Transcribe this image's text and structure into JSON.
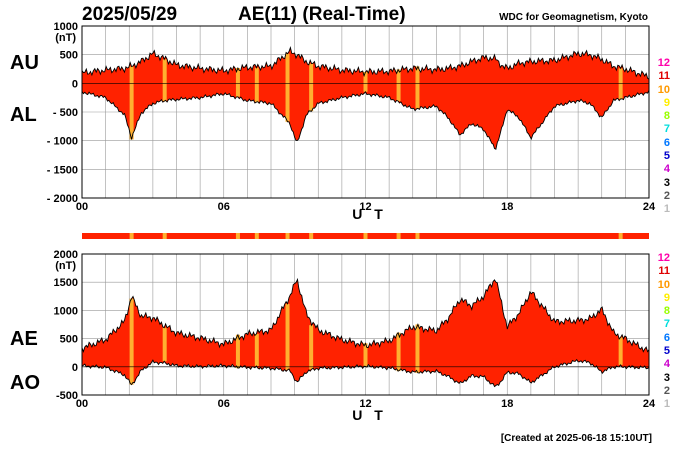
{
  "header": {
    "date": "2025/05/29",
    "title": "AE(11) (Real-Time)",
    "credit": "WDC for Geomagnetism, Kyoto"
  },
  "footer": {
    "created": "[Created at 2025-06-18 15:10UT]"
  },
  "station_counts": [
    "12",
    "11",
    "10",
    "9",
    "8",
    "7",
    "6",
    "5",
    "4",
    "3",
    "2",
    "1"
  ],
  "station_colors": [
    "#ff00aa",
    "#e00000",
    "#ff9900",
    "#ffee00",
    "#99ff00",
    "#00dddd",
    "#0077ff",
    "#0000cc",
    "#cc00cc",
    "#000000",
    "#555555",
    "#bbbbbb"
  ],
  "colors": {
    "fill": "#ff2200",
    "gap": "#ffb030",
    "line": "#000000",
    "grid": "#999999"
  },
  "chart_data": [
    {
      "type": "area",
      "panel": "AU / AL",
      "series_labels": [
        "AU",
        "AL"
      ],
      "unit": "(nT)",
      "xlabel": "U T",
      "x_ticks": [
        "00",
        "06",
        "12",
        "18",
        "24"
      ],
      "xlim": [
        0,
        24
      ],
      "y_ticks": [
        {
          "v": 1000,
          "t": "1000"
        },
        {
          "v": 500,
          "t": "500"
        },
        {
          "v": 0,
          "t": "0"
        },
        {
          "v": -500,
          "t": "- 500"
        },
        {
          "v": -1000,
          "t": "- 1000"
        },
        {
          "v": -1500,
          "t": "- 1500"
        },
        {
          "v": -2000,
          "t": "- 2000"
        }
      ],
      "ylim": [
        -2000,
        1000
      ],
      "grid": true,
      "x": [
        0,
        1,
        1.8,
        2.1,
        2.5,
        3,
        3.5,
        4,
        5,
        6,
        7,
        8,
        8.8,
        9.1,
        9.5,
        10,
        11,
        12,
        13,
        14,
        15,
        15.5,
        16,
        16.5,
        17,
        17.5,
        17.8,
        18,
        18.5,
        19,
        20,
        21,
        21.5,
        22,
        22.5,
        23,
        23.5,
        24
      ],
      "series": [
        {
          "name": "AU",
          "values": [
            180,
            230,
            260,
            300,
            380,
            520,
            430,
            320,
            260,
            220,
            280,
            300,
            560,
            500,
            380,
            300,
            230,
            200,
            210,
            260,
            240,
            260,
            300,
            380,
            450,
            430,
            300,
            260,
            350,
            380,
            400,
            520,
            500,
            420,
            300,
            250,
            180,
            120
          ]
        },
        {
          "name": "AL",
          "values": [
            -150,
            -250,
            -550,
            -950,
            -520,
            -350,
            -300,
            -280,
            -250,
            -180,
            -300,
            -350,
            -700,
            -1050,
            -550,
            -350,
            -250,
            -180,
            -250,
            -450,
            -400,
            -600,
            -900,
            -700,
            -800,
            -1150,
            -750,
            -450,
            -600,
            -950,
            -400,
            -300,
            -350,
            -600,
            -300,
            -250,
            -200,
            -150
          ]
        }
      ],
      "data_gaps_ut": [
        2.1,
        3.5,
        6.6,
        7.4,
        8.7,
        9.7,
        12.0,
        13.4,
        14.2,
        22.8
      ]
    },
    {
      "type": "area",
      "panel": "AE / AO",
      "series_labels": [
        "AE",
        "AO"
      ],
      "unit": "(nT)",
      "xlabel": "U T",
      "x_ticks": [
        "00",
        "06",
        "12",
        "18",
        "24"
      ],
      "xlim": [
        0,
        24
      ],
      "y_ticks": [
        {
          "v": 2000,
          "t": "2000"
        },
        {
          "v": 1500,
          "t": "1500"
        },
        {
          "v": 1000,
          "t": "1000"
        },
        {
          "v": 500,
          "t": "500"
        },
        {
          "v": 0,
          "t": "0"
        },
        {
          "v": -500,
          "t": "-500"
        }
      ],
      "ylim": [
        -500,
        2000
      ],
      "grid": true,
      "x": [
        0,
        1,
        1.8,
        2.1,
        2.5,
        3,
        3.5,
        4,
        5,
        6,
        7,
        8,
        8.8,
        9.1,
        9.5,
        10,
        11,
        12,
        13,
        14,
        15,
        15.5,
        16,
        16.5,
        17,
        17.5,
        17.8,
        18,
        18.5,
        19,
        20,
        21,
        21.5,
        22,
        22.5,
        23,
        23.5,
        24
      ],
      "series": [
        {
          "name": "AE",
          "values": [
            330,
            480,
            810,
            1250,
            900,
            870,
            730,
            600,
            510,
            400,
            580,
            650,
            1260,
            1550,
            930,
            650,
            480,
            380,
            460,
            710,
            640,
            860,
            1200,
            1080,
            1250,
            1580,
            1050,
            710,
            950,
            1330,
            800,
            820,
            850,
            1020,
            600,
            500,
            380,
            270
          ]
        },
        {
          "name": "AO",
          "values": [
            20,
            -10,
            -145,
            -325,
            -70,
            85,
            65,
            20,
            5,
            20,
            -10,
            -25,
            -70,
            -275,
            -85,
            -25,
            -10,
            10,
            -20,
            -95,
            -80,
            -170,
            -300,
            -160,
            -175,
            -360,
            -225,
            -95,
            -125,
            -285,
            0,
            110,
            75,
            -90,
            0,
            0,
            -10,
            -15
          ]
        }
      ],
      "data_gaps_ut": [
        2.1,
        3.5,
        6.6,
        7.4,
        8.7,
        9.7,
        12.0,
        13.4,
        14.2,
        22.8
      ]
    }
  ]
}
